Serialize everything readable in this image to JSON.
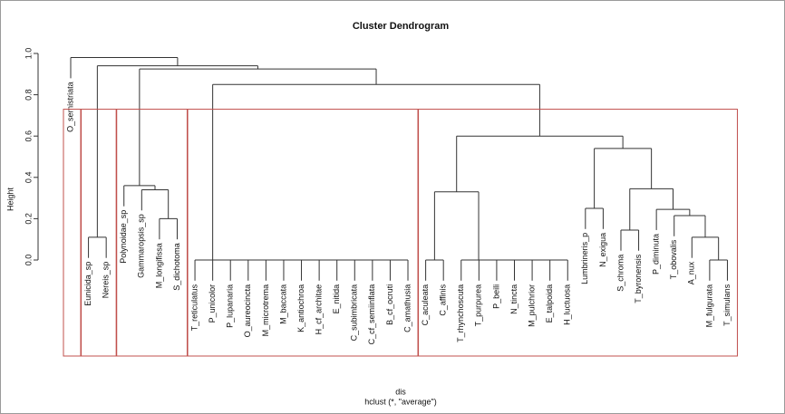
{
  "chart_data": {
    "type": "dendrogram",
    "title": "Cluster Dendrogram",
    "ylabel": "Height",
    "xlabel": "dis",
    "subtitle": "hclust (*, \"average\")",
    "ylim": [
      0,
      1
    ],
    "yticks": [
      {
        "value": 0,
        "label": "0.0"
      },
      {
        "value": 0.2,
        "label": "0.2"
      },
      {
        "value": 0.4,
        "label": "0.4"
      },
      {
        "value": 0.6,
        "label": "0.6"
      },
      {
        "value": 0.8,
        "label": "0.8"
      },
      {
        "value": 1,
        "label": "1.0"
      }
    ],
    "labels": [
      "O_semistriata",
      "Eunicida_sp",
      "Nereis_sp",
      "Polynoidae_sp",
      "Gammaropsis_sp",
      "M_longifissa",
      "S_dichotoma",
      "T_reticulatus",
      "P_unicolor",
      "P_lupanaria",
      "O_aureocincta",
      "M_microtrema",
      "M_baccata",
      "K_antiochroa",
      "H_cf_architae",
      "E_nitida",
      "C_subimbricata",
      "C_cf_semiinflata",
      "B_cf_ocruti",
      "C_amathusia",
      "C_aculeata",
      "C_affinis",
      "T_rhynchoscuta",
      "T_purpurea",
      "P_beili",
      "N_tincta",
      "M_pulchrior",
      "E_talpoida",
      "H_luctuosa",
      "Lumbrineris_p",
      "N_exigua",
      "S_chroma",
      "T_byronensis",
      "P_diminuta",
      "T_obovalis",
      "A_nux",
      "M_fulgurata",
      "T_simulans"
    ],
    "merge": [
      [
        -19,
        -20
      ],
      [
        -18,
        1
      ],
      [
        -17,
        2
      ],
      [
        -16,
        3
      ],
      [
        -15,
        4
      ],
      [
        -14,
        5
      ],
      [
        -13,
        6
      ],
      [
        -12,
        7
      ],
      [
        -11,
        8
      ],
      [
        -10,
        9
      ],
      [
        -9,
        10
      ],
      [
        -8,
        11
      ],
      [
        -21,
        -22
      ],
      [
        -28,
        -29
      ],
      [
        -27,
        14
      ],
      [
        -26,
        15
      ],
      [
        -25,
        16
      ],
      [
        -24,
        17
      ],
      [
        -23,
        18
      ],
      [
        -37,
        -38
      ],
      [
        -2,
        -3
      ],
      [
        -36,
        20
      ],
      [
        -32,
        -33
      ],
      [
        -6,
        -7
      ],
      [
        -35,
        22
      ],
      [
        -34,
        25
      ],
      [
        -30,
        -31
      ],
      [
        13,
        19
      ],
      [
        -5,
        24
      ],
      [
        23,
        26
      ],
      [
        -4,
        29
      ],
      [
        27,
        30
      ],
      [
        28,
        32
      ],
      [
        12,
        33
      ],
      [
        31,
        34
      ],
      [
        21,
        35
      ],
      [
        -1,
        36
      ]
    ],
    "height": [
      0,
      0,
      0,
      0,
      0,
      0,
      0,
      0,
      0,
      0,
      0,
      0,
      0,
      0,
      0,
      0,
      0,
      0,
      0,
      0,
      0.11,
      0.11,
      0.145,
      0.2,
      0.215,
      0.245,
      0.25,
      0.33,
      0.34,
      0.345,
      0.36,
      0.54,
      0.6,
      0.85,
      0.925,
      0.94,
      0.98
    ],
    "color": "#333333",
    "cluster_sizes": [
      1,
      2,
      4,
      13,
      18
    ],
    "rect_height": 0.73,
    "rect_color": "#c0504d"
  }
}
